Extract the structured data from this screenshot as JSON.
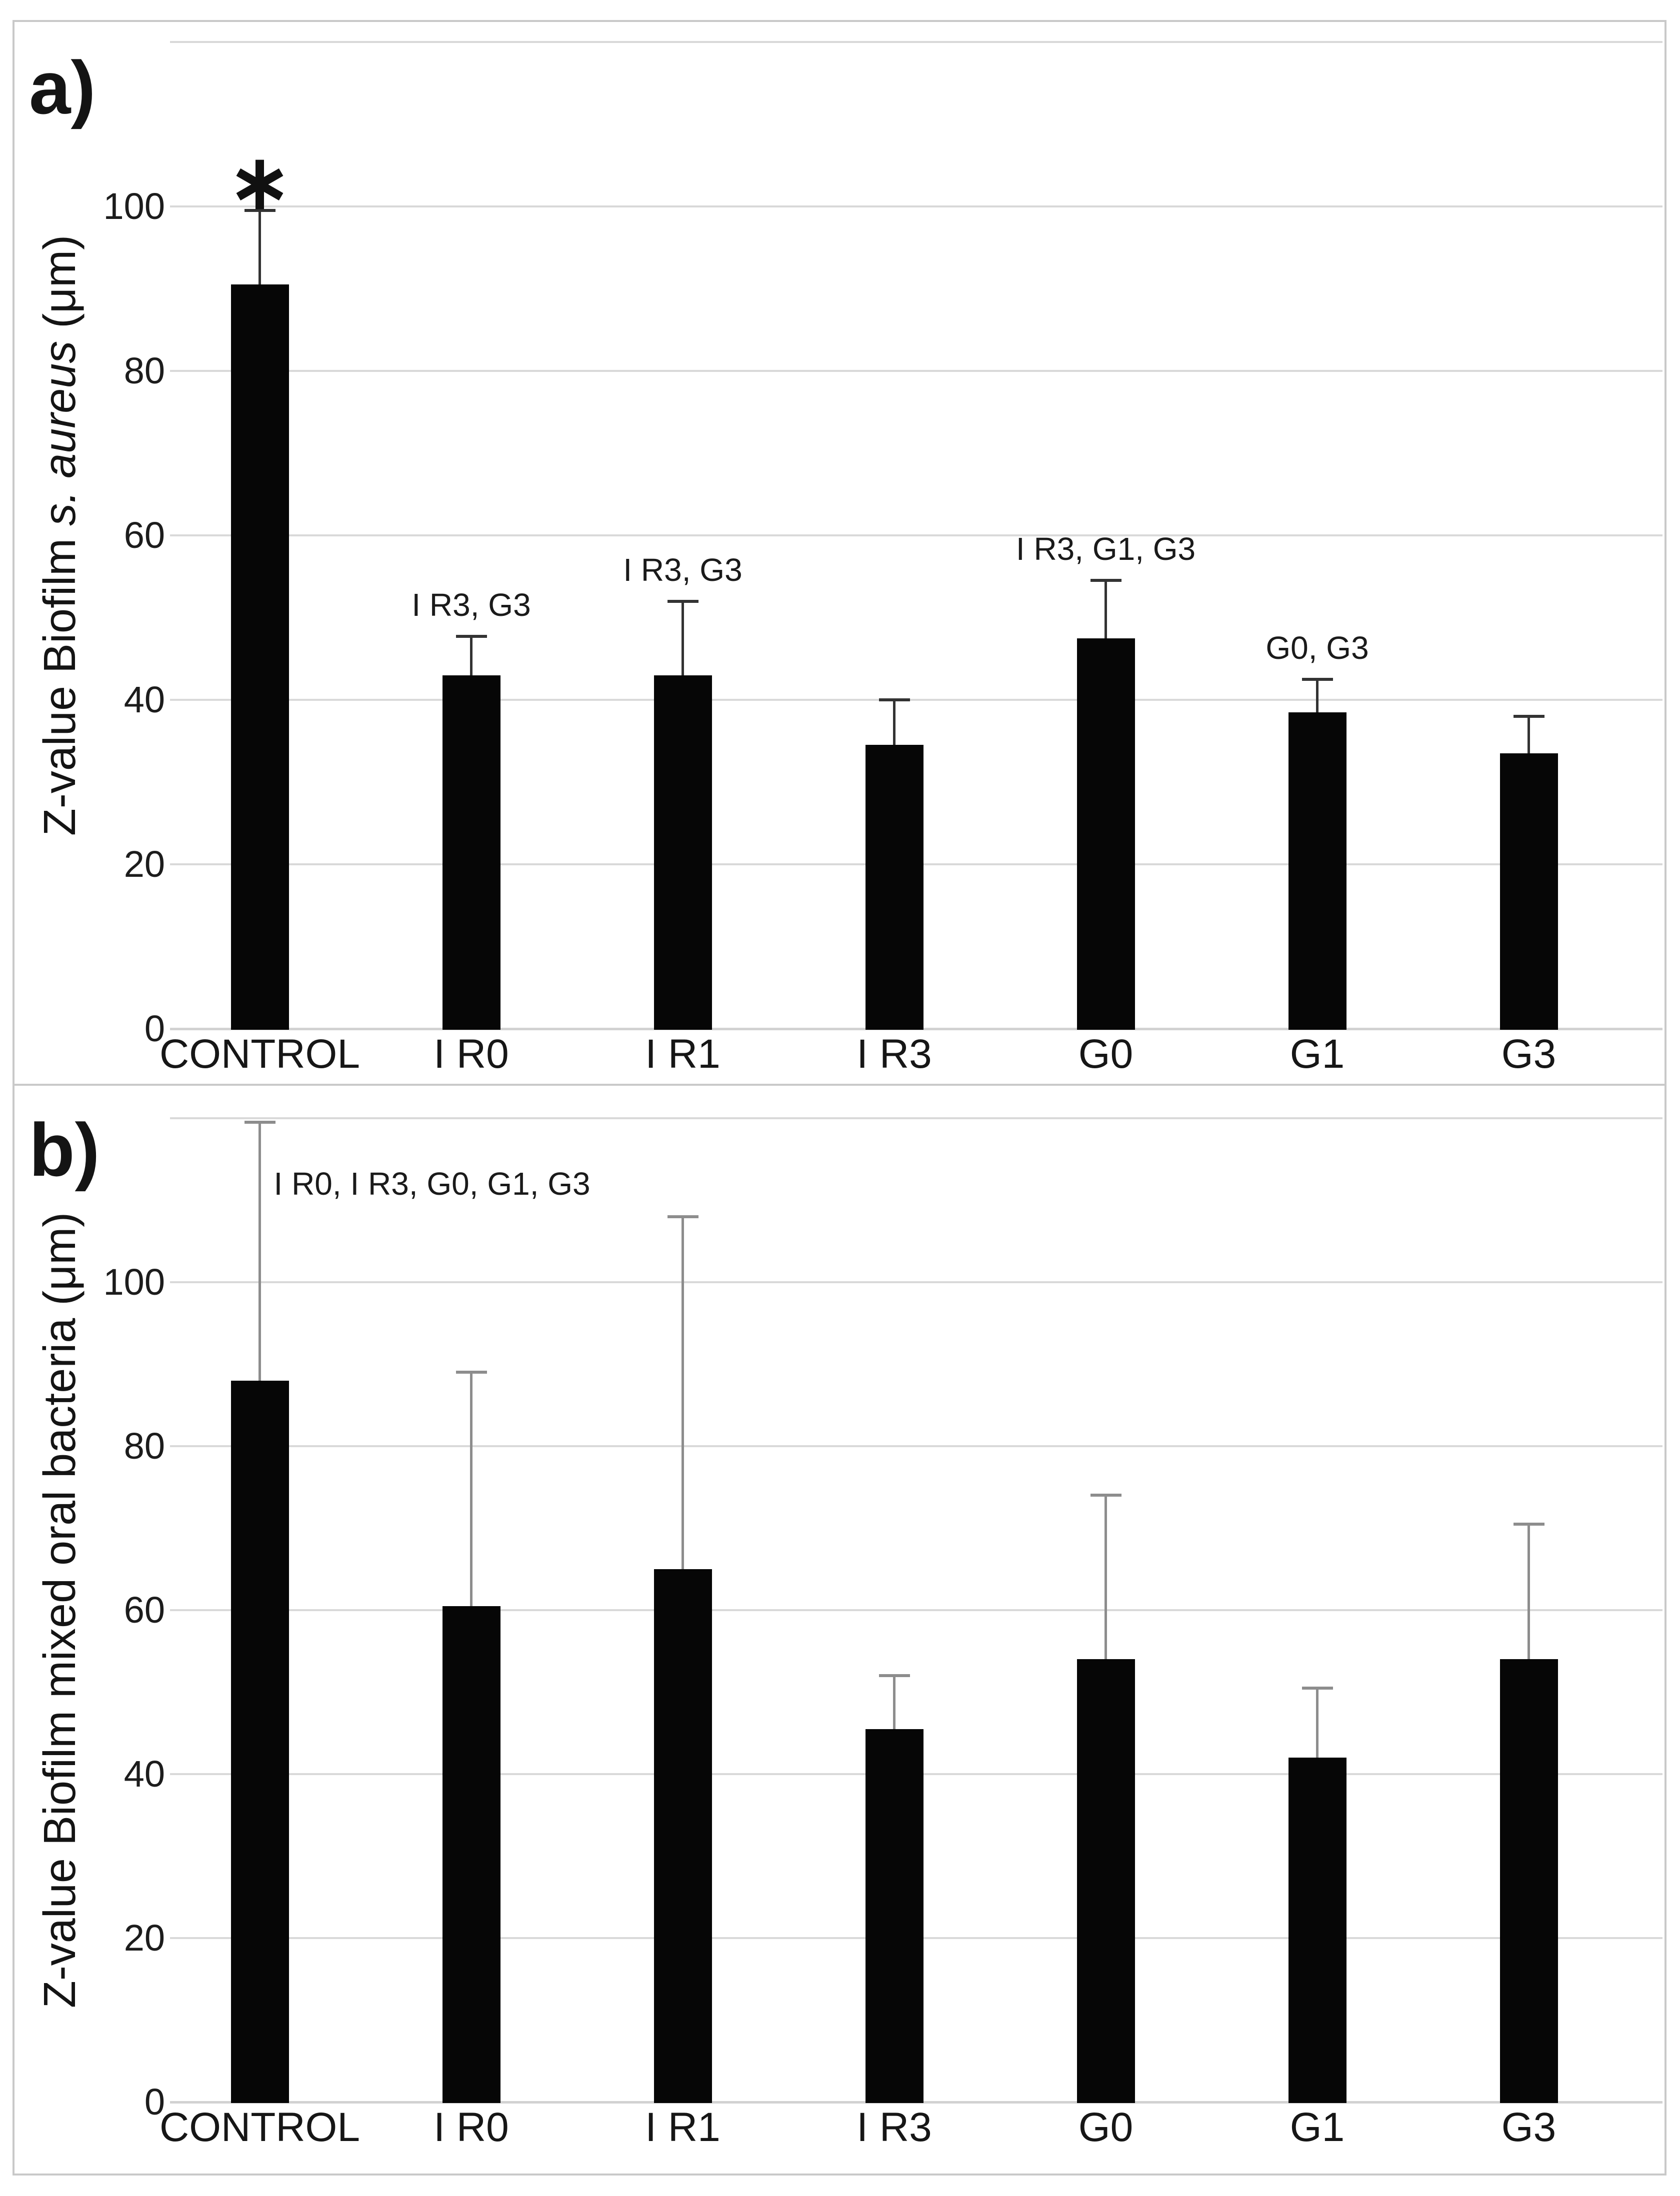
{
  "figure": {
    "background_color": "#ffffff",
    "frame_color": "#c9c9c9",
    "gridline_color": "#d9d9d9",
    "bar_color": "#060606"
  },
  "chart_data": [
    {
      "id": "a",
      "type": "bar",
      "panel_letter": "a)",
      "ylabel": "Z-value Biofilm s. aureus (μm)",
      "ylabel_prefix": "Z-value Biofilm ",
      "ylabel_italic_segment": "s. aureus",
      "ylabel_suffix": " (μm)",
      "xlabel": "",
      "categories": [
        "CONTROL",
        "I R0",
        "I R1",
        "I R3",
        "G0",
        "G1",
        "G3"
      ],
      "values": [
        90.5,
        43,
        43,
        34.5,
        47.5,
        38.5,
        33.5
      ],
      "errors_plus": [
        9,
        4.7,
        9,
        5.5,
        7,
        4,
        4.5
      ],
      "yticks": [
        0,
        20,
        40,
        60,
        80,
        100
      ],
      "ylim": [
        0,
        120
      ],
      "grid": true,
      "legend": "none",
      "error_color": "#333333",
      "significance": {
        "bar": "CONTROL",
        "text": "*",
        "glyph": "∗"
      },
      "annotations": [
        {
          "bar": "I R0",
          "text": "I R3, G3"
        },
        {
          "bar": "I R1",
          "text": "I R3, G3"
        },
        {
          "bar": "G0",
          "text": "I R3, G1, G3"
        },
        {
          "bar": "G1",
          "text": "G0, G3"
        }
      ]
    },
    {
      "id": "b",
      "type": "bar",
      "panel_letter": "b)",
      "ylabel": "Z-value Biofilm mixed oral bacteria (μm)",
      "ylabel_prefix": "Z-value Biofilm mixed oral bacteria (μm)",
      "ylabel_italic_segment": "",
      "ylabel_suffix": "",
      "xlabel": "",
      "categories": [
        "CONTROL",
        "I R0",
        "I R1",
        "I R3",
        "G0",
        "G1",
        "G3"
      ],
      "values": [
        88,
        60.5,
        65,
        45.5,
        54,
        42,
        54
      ],
      "errors_plus": [
        31.5,
        28.5,
        43,
        6.5,
        20,
        8.5,
        16.5
      ],
      "yticks": [
        0,
        20,
        40,
        60,
        80,
        100
      ],
      "ylim": [
        0,
        120
      ],
      "grid": true,
      "legend": "none",
      "error_color": "#8d8d8d",
      "significance": null,
      "annotations": [
        {
          "bar": "CONTROL",
          "text": "I R0, I R3, G0, G1, G3",
          "placement": "right-of-error"
        }
      ]
    }
  ]
}
